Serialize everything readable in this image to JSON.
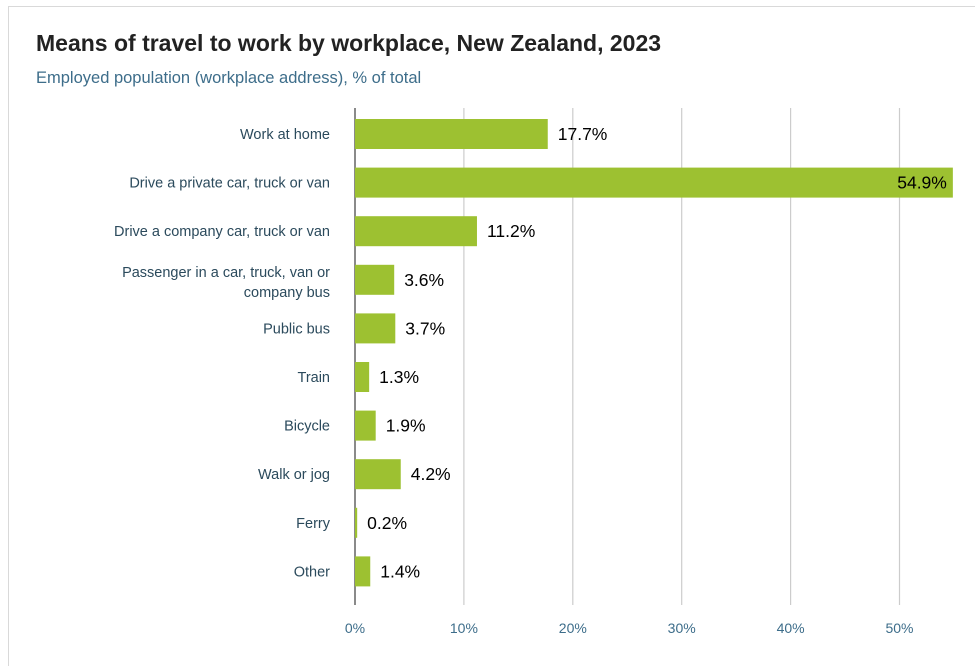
{
  "title": "Means of travel to work by workplace, New Zealand, 2023",
  "subtitle": "Employed population (workplace address), % of total",
  "colors": {
    "bar": "#9dc131",
    "grid": "#cccccc",
    "axis": "#8a8a8a"
  },
  "chart_data": {
    "type": "bar",
    "orientation": "horizontal",
    "categories": [
      "Work at home",
      "Drive a private car, truck or van",
      "Drive a company car, truck or van",
      "Passenger in a car, truck, van or company bus",
      "Public bus",
      "Train",
      "Bicycle",
      "Walk or jog",
      "Ferry",
      "Other"
    ],
    "values": [
      17.7,
      54.9,
      11.2,
      3.6,
      3.7,
      1.3,
      1.9,
      4.2,
      0.2,
      1.4
    ],
    "value_labels": [
      "17.7%",
      "54.9%",
      "11.2%",
      "3.6%",
      "3.7%",
      "1.3%",
      "1.9%",
      "4.2%",
      "0.2%",
      "1.4%"
    ],
    "x_ticks": [
      0,
      10,
      20,
      30,
      40,
      50
    ],
    "x_tick_labels": [
      "0%",
      "10%",
      "20%",
      "30%",
      "40%",
      "50%"
    ],
    "xlim": [
      0,
      55
    ],
    "grid": true
  }
}
